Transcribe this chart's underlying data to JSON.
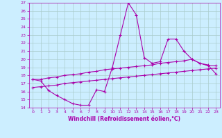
{
  "xlabel": "Windchill (Refroidissement éolien,°C)",
  "background_color": "#cceeff",
  "grid_color": "#aacccc",
  "line_color": "#aa00aa",
  "xlim": [
    -0.5,
    23.5
  ],
  "ylim": [
    14,
    27
  ],
  "xticks": [
    0,
    1,
    2,
    3,
    4,
    5,
    6,
    7,
    8,
    9,
    10,
    11,
    12,
    13,
    14,
    15,
    16,
    17,
    18,
    19,
    20,
    21,
    22,
    23
  ],
  "yticks": [
    14,
    15,
    16,
    17,
    18,
    19,
    20,
    21,
    22,
    23,
    24,
    25,
    26,
    27
  ],
  "line1_x": [
    0,
    1,
    2,
    3,
    4,
    5,
    6,
    7,
    8,
    9,
    10,
    11,
    12,
    13,
    14,
    15,
    16,
    17,
    18,
    19,
    20,
    21,
    22,
    23
  ],
  "line1_y": [
    17.5,
    17.3,
    16.1,
    15.5,
    15.0,
    14.5,
    14.3,
    14.3,
    16.2,
    16.0,
    19.0,
    23.0,
    27.0,
    25.5,
    20.2,
    19.5,
    19.7,
    22.5,
    22.5,
    21.0,
    20.0,
    19.5,
    19.2,
    19.2
  ],
  "line2_x": [
    0,
    1,
    2,
    3,
    4,
    5,
    6,
    7,
    8,
    9,
    10,
    11,
    12,
    13,
    14,
    15,
    16,
    17,
    18,
    19,
    20,
    21,
    22,
    23
  ],
  "line2_y": [
    17.5,
    17.5,
    17.7,
    17.8,
    18.0,
    18.1,
    18.2,
    18.4,
    18.5,
    18.7,
    18.8,
    18.9,
    19.0,
    19.1,
    19.2,
    19.3,
    19.5,
    19.6,
    19.7,
    19.8,
    20.0,
    19.5,
    19.3,
    18.2
  ],
  "line3_x": [
    0,
    1,
    2,
    3,
    4,
    5,
    6,
    7,
    8,
    9,
    10,
    11,
    12,
    13,
    14,
    15,
    16,
    17,
    18,
    19,
    20,
    21,
    22,
    23
  ],
  "line3_y": [
    16.5,
    16.6,
    16.7,
    16.8,
    17.0,
    17.1,
    17.2,
    17.3,
    17.4,
    17.5,
    17.6,
    17.7,
    17.8,
    17.9,
    18.0,
    18.1,
    18.2,
    18.3,
    18.4,
    18.5,
    18.6,
    18.7,
    18.8,
    18.9
  ]
}
